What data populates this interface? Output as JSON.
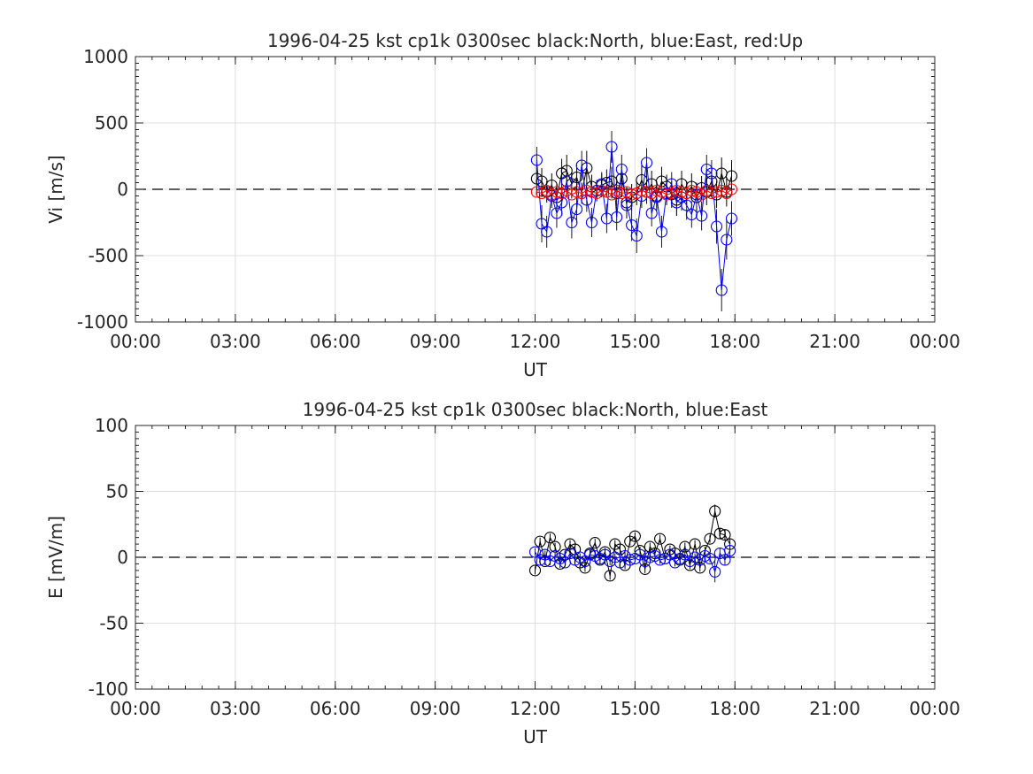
{
  "chart_data": [
    {
      "type": "scatter",
      "title": "1996-04-25 kst cp1k 0300sec black:North, blue:East, red:Up",
      "xlabel": "UT",
      "ylabel": "Vi [m/s]",
      "xlim": [
        0,
        24
      ],
      "ylim": [
        -1000,
        1000
      ],
      "xtick_labels": [
        "00:00",
        "03:00",
        "06:00",
        "09:00",
        "12:00",
        "15:00",
        "18:00",
        "21:00",
        "00:00"
      ],
      "ytick_labels": [
        "1000",
        "500",
        "0",
        "-500",
        "-1000"
      ],
      "grid": true,
      "zero_line": "dashed",
      "series": [
        {
          "color": "#000000",
          "x": [
            12.05,
            12.2,
            12.35,
            12.5,
            12.65,
            12.8,
            12.95,
            13.1,
            13.25,
            13.4,
            13.55,
            13.7,
            13.85,
            14.0,
            14.15,
            14.3,
            14.45,
            14.6,
            14.75,
            14.9,
            15.05,
            15.2,
            15.35,
            15.5,
            15.65,
            15.8,
            15.95,
            16.1,
            16.25,
            16.4,
            16.55,
            16.7,
            16.85,
            17.0,
            17.15,
            17.3,
            17.45,
            17.6,
            17.75,
            17.9
          ],
          "y": [
            80,
            60,
            -20,
            30,
            -60,
            120,
            140,
            40,
            90,
            -30,
            160,
            20,
            -10,
            30,
            50,
            60,
            -30,
            80,
            -100,
            -60,
            -30,
            70,
            -20,
            40,
            -50,
            60,
            20,
            -40,
            -80,
            40,
            -30,
            20,
            -60,
            10,
            -20,
            60,
            -40,
            120,
            -20,
            100
          ],
          "err": [
            120,
            100,
            80,
            90,
            100,
            110,
            120,
            90,
            110,
            80,
            130,
            90,
            80,
            90,
            100,
            110,
            90,
            100,
            120,
            100,
            90,
            110,
            90,
            100,
            110,
            110,
            90,
            100,
            120,
            100,
            90,
            100,
            110,
            90,
            100,
            110,
            100,
            120,
            110,
            120
          ]
        },
        {
          "color": "#0000ff",
          "x": [
            12.05,
            12.2,
            12.35,
            12.5,
            12.65,
            12.8,
            12.95,
            13.1,
            13.25,
            13.4,
            13.55,
            13.7,
            13.85,
            14.0,
            14.15,
            14.3,
            14.45,
            14.6,
            14.75,
            14.9,
            15.05,
            15.2,
            15.35,
            15.5,
            15.65,
            15.8,
            15.95,
            16.1,
            16.25,
            16.4,
            16.55,
            16.7,
            16.85,
            17.0,
            17.15,
            17.3,
            17.45,
            17.6,
            17.75,
            17.9
          ],
          "y": [
            220,
            -260,
            -320,
            -50,
            -180,
            -100,
            60,
            -250,
            -150,
            180,
            -80,
            -250,
            -10,
            40,
            -220,
            320,
            -210,
            150,
            -120,
            -270,
            -350,
            -50,
            200,
            -180,
            -60,
            -320,
            -30,
            40,
            -100,
            -60,
            -120,
            -190,
            -40,
            -200,
            150,
            120,
            -280,
            -760,
            -380,
            -220
          ],
          "err": [
            100,
            140,
            120,
            90,
            110,
            100,
            90,
            120,
            100,
            110,
            90,
            110,
            80,
            90,
            110,
            120,
            100,
            110,
            100,
            120,
            130,
            90,
            110,
            100,
            90,
            120,
            90,
            90,
            100,
            100,
            110,
            100,
            90,
            110,
            110,
            100,
            130,
            160,
            150,
            130
          ]
        },
        {
          "color": "#ff0000",
          "x": [
            12.05,
            12.2,
            12.35,
            12.5,
            12.65,
            12.8,
            12.95,
            13.1,
            13.25,
            13.4,
            13.55,
            13.7,
            13.85,
            14.0,
            14.15,
            14.3,
            14.45,
            14.6,
            14.75,
            14.9,
            15.05,
            15.2,
            15.35,
            15.5,
            15.65,
            15.8,
            15.95,
            16.1,
            16.25,
            16.4,
            16.55,
            16.7,
            16.85,
            17.0,
            17.15,
            17.3,
            17.45,
            17.6,
            17.75,
            17.9
          ],
          "y": [
            -20,
            -30,
            -10,
            -40,
            -20,
            -30,
            -10,
            -40,
            -20,
            -30,
            -10,
            -20,
            -30,
            -10,
            -20,
            -40,
            -10,
            -30,
            -20,
            -40,
            -30,
            -10,
            -20,
            -30,
            -10,
            -20,
            -40,
            -30,
            -10,
            -20,
            -30,
            -10,
            -20,
            -40,
            -10,
            -30,
            -20,
            -10,
            -30,
            0
          ],
          "err": [
            30,
            30,
            30,
            30,
            30,
            30,
            30,
            30,
            30,
            30,
            30,
            30,
            30,
            30,
            30,
            30,
            30,
            30,
            30,
            30,
            30,
            30,
            30,
            30,
            30,
            30,
            30,
            30,
            30,
            30,
            30,
            30,
            30,
            30,
            30,
            30,
            30,
            30,
            30,
            30
          ]
        }
      ]
    },
    {
      "type": "scatter",
      "title": "1996-04-25 kst cp1k 0300sec black:North, blue:East",
      "xlabel": "UT",
      "ylabel": "E [mV/m]",
      "xlim": [
        0,
        24
      ],
      "ylim": [
        -100,
        100
      ],
      "xtick_labels": [
        "00:00",
        "03:00",
        "06:00",
        "09:00",
        "12:00",
        "15:00",
        "18:00",
        "21:00",
        "00:00"
      ],
      "ytick_labels": [
        "100",
        "50",
        "0",
        "-50",
        "-100"
      ],
      "grid": true,
      "zero_line": "dashed",
      "series": [
        {
          "color": "#000000",
          "x": [
            12.0,
            12.15,
            12.3,
            12.45,
            12.6,
            12.75,
            12.9,
            13.05,
            13.2,
            13.35,
            13.5,
            13.65,
            13.8,
            13.95,
            14.1,
            14.25,
            14.4,
            14.55,
            14.7,
            14.85,
            15.0,
            15.15,
            15.3,
            15.45,
            15.6,
            15.75,
            15.9,
            16.05,
            16.2,
            16.35,
            16.5,
            16.65,
            16.8,
            16.95,
            17.1,
            17.25,
            17.4,
            17.55,
            17.7,
            17.85
          ],
          "y": [
            -10,
            12,
            -3,
            15,
            8,
            -5,
            2,
            10,
            6,
            -4,
            -8,
            3,
            11,
            -2,
            4,
            -14,
            10,
            6,
            -6,
            12,
            16,
            5,
            -9,
            8,
            3,
            14,
            -1,
            6,
            3,
            -2,
            8,
            -6,
            10,
            -8,
            5,
            14,
            35,
            18,
            17,
            10
          ],
          "err": [
            3,
            3,
            3,
            3,
            3,
            3,
            3,
            3,
            3,
            3,
            3,
            3,
            3,
            3,
            3,
            3,
            3,
            3,
            3,
            3,
            3,
            3,
            3,
            3,
            3,
            3,
            3,
            3,
            3,
            3,
            3,
            3,
            3,
            3,
            3,
            3,
            5,
            4,
            4,
            4
          ]
        },
        {
          "color": "#0000ff",
          "x": [
            12.0,
            12.15,
            12.3,
            12.45,
            12.6,
            12.75,
            12.9,
            13.05,
            13.2,
            13.35,
            13.5,
            13.65,
            13.8,
            13.95,
            14.1,
            14.25,
            14.4,
            14.55,
            14.7,
            14.85,
            15.0,
            15.15,
            15.3,
            15.45,
            15.6,
            15.75,
            15.9,
            16.05,
            16.2,
            16.35,
            16.5,
            16.65,
            16.8,
            16.95,
            17.1,
            17.25,
            17.4,
            17.55,
            17.7,
            17.85
          ],
          "y": [
            4,
            -2,
            2,
            -3,
            1,
            -1,
            -4,
            3,
            -2,
            0,
            -3,
            2,
            1,
            -1,
            2,
            -3,
            0,
            -4,
            1,
            -2,
            -1,
            2,
            -3,
            0,
            1,
            -2,
            -1,
            2,
            -4,
            -1,
            2,
            -3,
            0,
            -2,
            1,
            -1,
            -11,
            3,
            -2,
            5
          ],
          "err": [
            3,
            3,
            3,
            3,
            3,
            3,
            3,
            3,
            3,
            3,
            3,
            3,
            3,
            3,
            3,
            3,
            3,
            3,
            3,
            3,
            3,
            3,
            3,
            3,
            3,
            3,
            3,
            3,
            3,
            3,
            3,
            3,
            3,
            3,
            3,
            3,
            8,
            4,
            4,
            4
          ]
        }
      ]
    }
  ]
}
